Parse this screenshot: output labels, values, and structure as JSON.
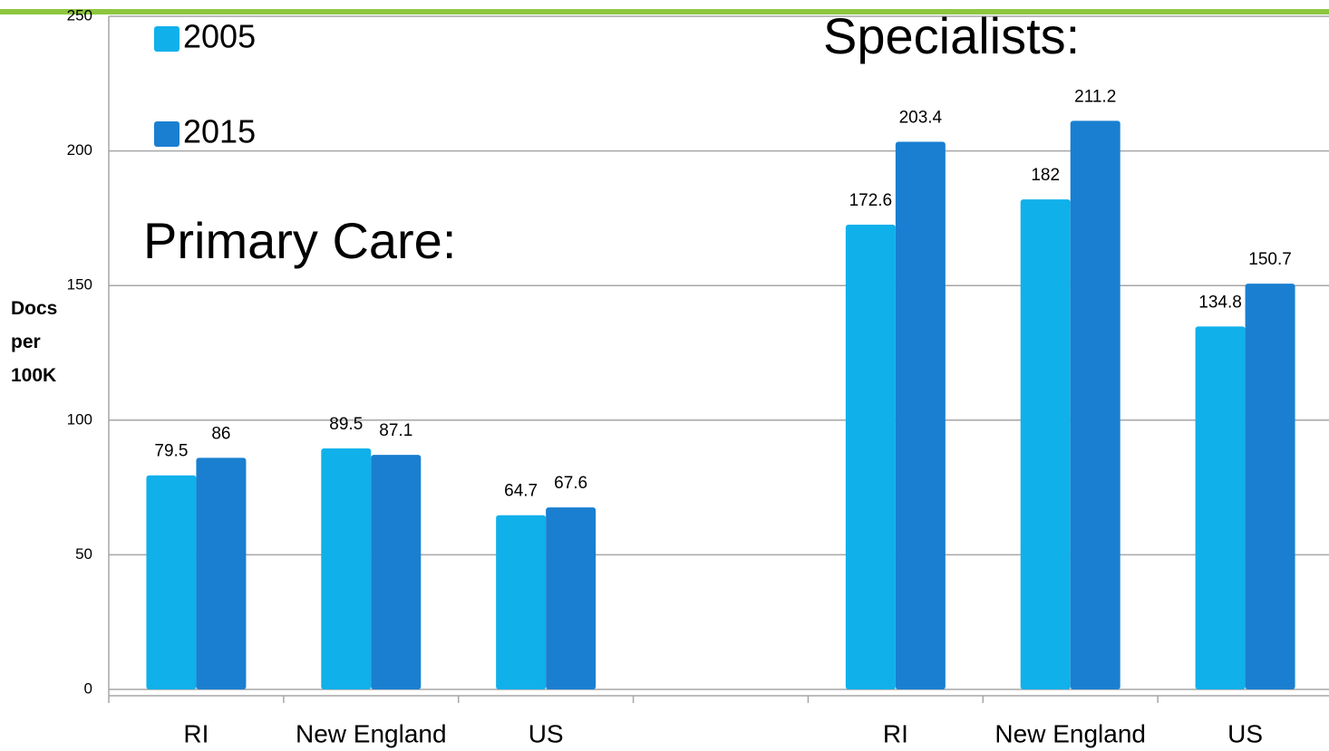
{
  "chart_data": {
    "type": "bar",
    "categories": [
      "RI",
      "New England",
      "US",
      null,
      "RI",
      "New England",
      "US"
    ],
    "series": [
      {
        "name": "2005",
        "color": "#10b0ea",
        "values": [
          79.5,
          89.5,
          64.7,
          null,
          172.6,
          182,
          134.8
        ]
      },
      {
        "name": "2015",
        "color": "#1a7fd0",
        "values": [
          86,
          87.1,
          67.6,
          null,
          203.4,
          211.2,
          150.7
        ]
      }
    ],
    "ylabel": "Docs per 100K",
    "annotations": [
      "Primary Care:",
      "Specialists:"
    ],
    "ylim": [
      0,
      250
    ],
    "yticks": [
      0,
      50,
      100,
      150,
      200,
      250
    ],
    "grid": true,
    "legend": "upper left"
  }
}
